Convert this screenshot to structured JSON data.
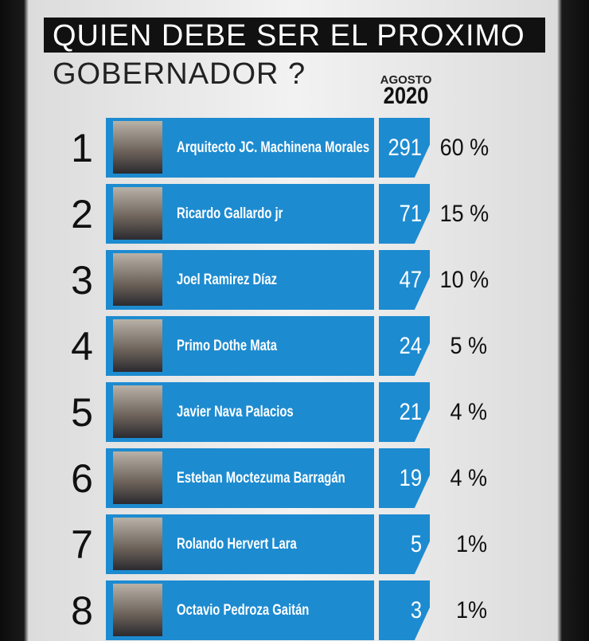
{
  "header": {
    "title": [
      "QUIEN DEBE SER EL PROXIMO",
      "GOBERNADOR ?"
    ],
    "column": [
      "AGOSTO",
      "2020"
    ]
  },
  "rows": [
    {
      "rank": 1,
      "name": "Arquitecto JC. Machinena Morales",
      "votes": 291,
      "percent": "60 %"
    },
    {
      "rank": 2,
      "name": "Ricardo Gallardo jr",
      "votes": 71,
      "percent": "15 %"
    },
    {
      "rank": 3,
      "name": "Joel Ramirez Díaz",
      "votes": 47,
      "percent": "10 %"
    },
    {
      "rank": 4,
      "name": "Primo Dothe Mata",
      "votes": 24,
      "percent": "5 %"
    },
    {
      "rank": 5,
      "name": "Javier Nava Palacios",
      "votes": 21,
      "percent": "4 %"
    },
    {
      "rank": 6,
      "name": "Esteban Moctezuma Barragán",
      "votes": 19,
      "percent": "4 %"
    },
    {
      "rank": 7,
      "name": "Rolando Hervert Lara",
      "votes": 5,
      "percent": "1%"
    },
    {
      "rank": 8,
      "name": "Octavio Pedroza Gaitán",
      "votes": 3,
      "percent": "1%"
    }
  ]
}
